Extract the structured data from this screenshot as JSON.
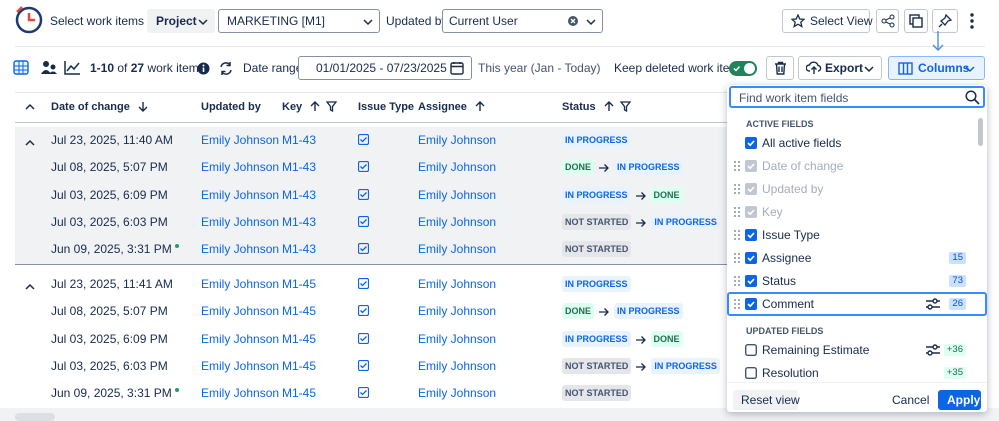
{
  "header": {
    "select_by_label": "Select work items by:",
    "project_button": "Project",
    "project_value": "MARKETING [M1]",
    "updated_by_label": "Updated by:",
    "updated_by_value": "Current User",
    "select_view": "Select View"
  },
  "toolbar": {
    "range": "1-10",
    "of": "of",
    "total": "27",
    "suffix": "work items",
    "date_range_label": "Date range:",
    "date_range_value": "01/01/2025 - 07/23/2025",
    "date_range_hint": "This year (Jan - Today)",
    "keep_deleted": "Keep deleted work items",
    "keep_deleted_on": true,
    "export": "Export",
    "columns": "Columns"
  },
  "table": {
    "columns": [
      "Date of change",
      "Updated by",
      "Key",
      "Issue Type",
      "Assignee",
      "Status"
    ],
    "groups": [
      {
        "rows": [
          {
            "date": "Jul 23, 2025, 11:40 AM",
            "updated_by": "Emily Johnson",
            "key": "M1-43",
            "assignee": "Emily Johnson",
            "status": [
              {
                "label": "IN PROGRESS",
                "color": "#0c66e4",
                "bg": "#e9f2ff"
              }
            ]
          },
          {
            "date": "Jul 08, 2025, 5:07 PM",
            "updated_by": "Emily Johnson",
            "key": "M1-43",
            "assignee": "Emily Johnson",
            "status": [
              {
                "label": "DONE",
                "color": "#216e4e",
                "bg": "#dcfff1"
              },
              {
                "label": "IN PROGRESS",
                "color": "#0c66e4",
                "bg": "#e9f2ff"
              }
            ]
          },
          {
            "date": "Jul 03, 2025, 6:09 PM",
            "updated_by": "Emily Johnson",
            "key": "M1-43",
            "assignee": "Emily Johnson",
            "status": [
              {
                "label": "IN PROGRESS",
                "color": "#0c66e4",
                "bg": "#e9f2ff"
              },
              {
                "label": "DONE",
                "color": "#216e4e",
                "bg": "#dcfff1"
              }
            ]
          },
          {
            "date": "Jul 03, 2025, 6:03 PM",
            "updated_by": "Emily Johnson",
            "key": "M1-43",
            "assignee": "Emily Johnson",
            "status": [
              {
                "label": "NOT STARTED",
                "color": "#44546f",
                "bg": "#e4e6ea"
              },
              {
                "label": "IN PROGRESS",
                "color": "#0c66e4",
                "bg": "#e9f2ff"
              }
            ]
          },
          {
            "date": "Jun 09, 2025, 3:31 PM",
            "dot": true,
            "updated_by": "Emily Johnson",
            "key": "M1-43",
            "assignee": "Emily Johnson",
            "status": [
              {
                "label": "NOT STARTED",
                "color": "#44546f",
                "bg": "#e4e6ea"
              }
            ]
          }
        ]
      },
      {
        "rows": [
          {
            "date": "Jul 23, 2025, 11:41 AM",
            "updated_by": "Emily Johnson",
            "key": "M1-45",
            "assignee": "Emily Johnson",
            "status": [
              {
                "label": "IN PROGRESS",
                "color": "#0c66e4",
                "bg": "#e9f2ff"
              }
            ]
          },
          {
            "date": "Jul 08, 2025, 5:07 PM",
            "updated_by": "Emily Johnson",
            "key": "M1-45",
            "assignee": "Emily Johnson",
            "status": [
              {
                "label": "DONE",
                "color": "#216e4e",
                "bg": "#dcfff1"
              },
              {
                "label": "IN PROGRESS",
                "color": "#0c66e4",
                "bg": "#e9f2ff"
              }
            ]
          },
          {
            "date": "Jul 03, 2025, 6:09 PM",
            "updated_by": "Emily Johnson",
            "key": "M1-45",
            "assignee": "Emily Johnson",
            "status": [
              {
                "label": "IN PROGRESS",
                "color": "#0c66e4",
                "bg": "#e9f2ff"
              },
              {
                "label": "DONE",
                "color": "#216e4e",
                "bg": "#dcfff1"
              }
            ]
          },
          {
            "date": "Jul 03, 2025, 6:03 PM",
            "updated_by": "Emily Johnson",
            "key": "M1-45",
            "assignee": "Emily Johnson",
            "status": [
              {
                "label": "NOT STARTED",
                "color": "#44546f",
                "bg": "#e4e6ea"
              },
              {
                "label": "IN PROGRESS",
                "color": "#0c66e4",
                "bg": "#e9f2ff"
              }
            ]
          },
          {
            "date": "Jun 09, 2025, 3:31 PM",
            "dot": true,
            "updated_by": "Emily Johnson",
            "key": "M1-45",
            "assignee": "Emily Johnson",
            "status": [
              {
                "label": "NOT STARTED",
                "color": "#44546f",
                "bg": "#e4e6ea"
              }
            ]
          }
        ]
      }
    ]
  },
  "panel": {
    "search_placeholder": "Find work item fields",
    "active_title": "ACTIVE FIELDS",
    "active_fields": [
      {
        "label": "All active fields",
        "checked": true
      },
      {
        "label": "Date of change",
        "checked": true,
        "disabled": true,
        "draggable": true
      },
      {
        "label": "Updated by",
        "checked": true,
        "disabled": true,
        "draggable": true
      },
      {
        "label": "Key",
        "checked": true,
        "disabled": true,
        "draggable": true
      },
      {
        "label": "Issue Type",
        "checked": true,
        "draggable": true
      },
      {
        "label": "Assignee",
        "checked": true,
        "draggable": true,
        "count": 15
      },
      {
        "label": "Status",
        "checked": true,
        "draggable": true,
        "count": 73
      },
      {
        "label": "Comment",
        "checked": true,
        "draggable": true,
        "filter": true,
        "selected": true,
        "count": 26
      }
    ],
    "updated_title": "UPDATED FIELDS",
    "updated_fields": [
      {
        "label": "Remaining Estimate",
        "checked": false,
        "filter": true,
        "count": "+36"
      },
      {
        "label": "Resolution",
        "checked": false,
        "count": "+35"
      }
    ],
    "reset": "Reset view",
    "cancel": "Cancel",
    "apply": "Apply"
  }
}
